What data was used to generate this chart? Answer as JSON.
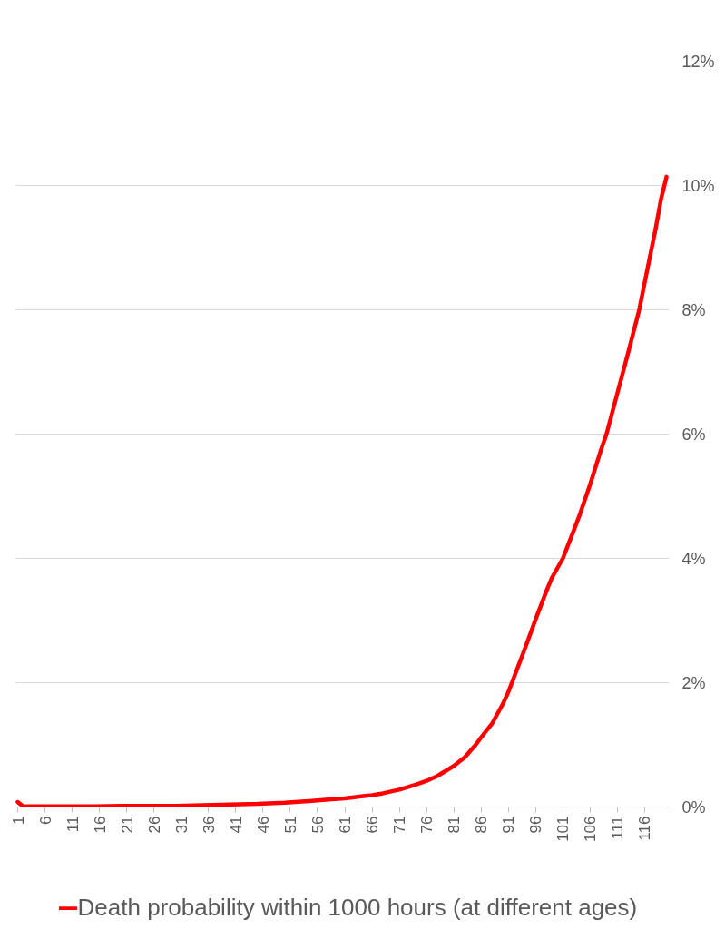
{
  "chart_data": {
    "type": "line",
    "x": [
      1,
      2,
      5,
      10,
      15,
      20,
      25,
      30,
      35,
      40,
      45,
      50,
      55,
      58,
      61,
      64,
      66,
      68,
      71,
      74,
      76,
      78,
      81,
      83,
      85,
      86,
      88,
      90,
      91,
      92,
      94,
      96,
      98,
      99,
      101,
      103,
      104,
      106,
      108,
      109,
      111,
      113,
      115,
      116,
      118,
      119,
      120
    ],
    "series": [
      {
        "name": "Death probability within 1000 hours (at different ages)",
        "color": "#ff0000",
        "values": [
          0.08,
          0.01,
          0.01,
          0.01,
          0.01,
          0.02,
          0.02,
          0.02,
          0.03,
          0.04,
          0.05,
          0.07,
          0.1,
          0.12,
          0.14,
          0.17,
          0.19,
          0.22,
          0.28,
          0.36,
          0.42,
          0.5,
          0.66,
          0.8,
          1.0,
          1.12,
          1.34,
          1.66,
          1.85,
          2.08,
          2.54,
          3.02,
          3.48,
          3.69,
          4.0,
          4.45,
          4.68,
          5.19,
          5.75,
          6.0,
          6.66,
          7.32,
          8.0,
          8.44,
          9.3,
          9.78,
          10.14
        ]
      }
    ],
    "xlim": [
      0.5,
      120.5
    ],
    "xticks": [
      1,
      6,
      11,
      16,
      21,
      26,
      31,
      36,
      41,
      46,
      51,
      56,
      61,
      66,
      71,
      76,
      81,
      86,
      91,
      96,
      101,
      106,
      111,
      116
    ],
    "ylim": [
      0,
      12
    ],
    "yticks": [
      {
        "value": 0,
        "label": "0%"
      },
      {
        "value": 2,
        "label": "2%"
      },
      {
        "value": 4,
        "label": "4%"
      },
      {
        "value": 6,
        "label": "6%"
      },
      {
        "value": 8,
        "label": "8%"
      },
      {
        "value": 10,
        "label": "10%"
      },
      {
        "value": 12,
        "label": "12%"
      }
    ],
    "grid": "y",
    "legend": "bottom",
    "line_style": "solid"
  }
}
